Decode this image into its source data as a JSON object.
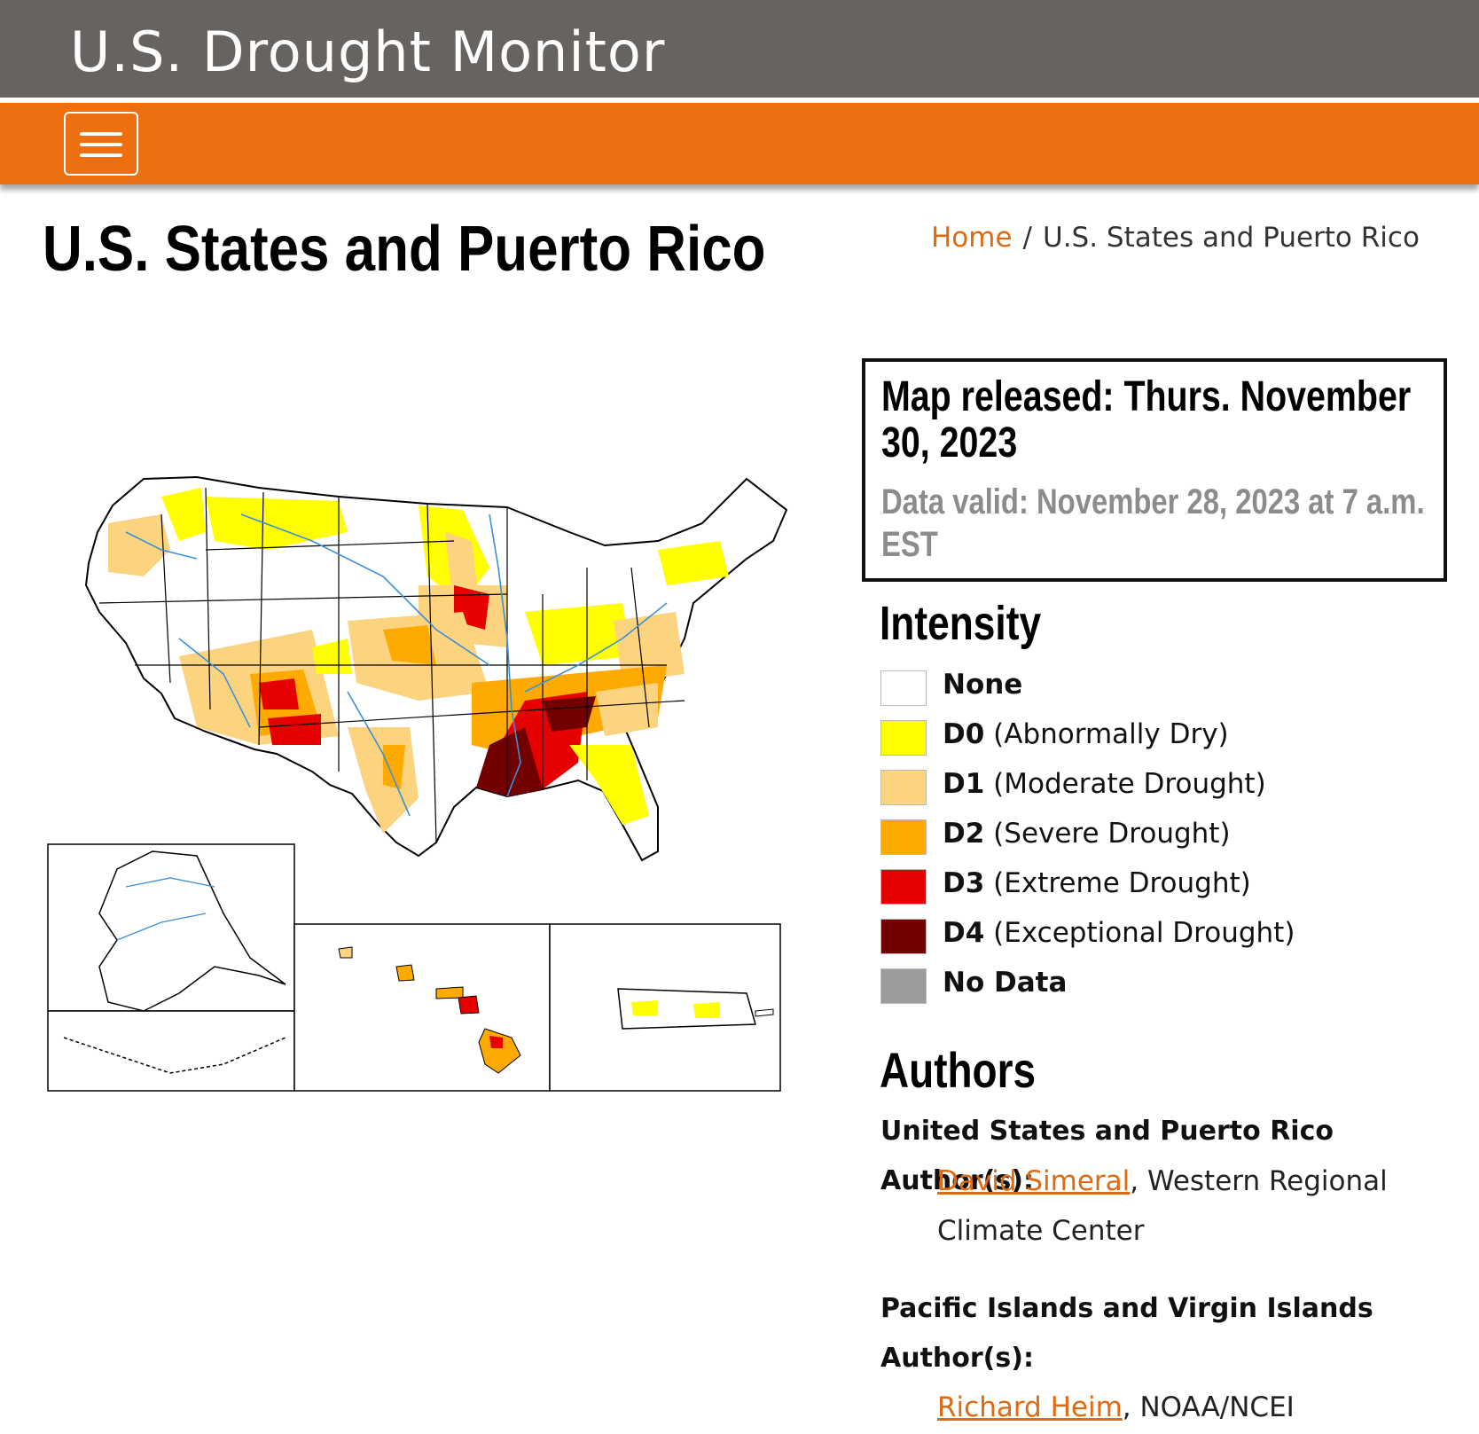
{
  "header": {
    "site_title": "U.S. Drought Monitor"
  },
  "navbar": {
    "menu_icon": "hamburger-icon"
  },
  "page": {
    "title": "U.S. States and Puerto Rico"
  },
  "breadcrumb": {
    "home": "Home",
    "separator": "/",
    "current": "U.S. States and Puerto Rico"
  },
  "release": {
    "released": "Map released: Thurs. November 30, 2023",
    "valid": "Data valid: November 28, 2023 at 7 a.m. EST"
  },
  "legend": {
    "heading": "Intensity",
    "items": [
      {
        "code": "None",
        "desc": "",
        "color": "#ffffff"
      },
      {
        "code": "D0",
        "desc": "(Abnormally Dry)",
        "color": "#ffff00"
      },
      {
        "code": "D1",
        "desc": "(Moderate Drought)",
        "color": "#fcd37f"
      },
      {
        "code": "D2",
        "desc": "(Severe Drought)",
        "color": "#ffaa00"
      },
      {
        "code": "D3",
        "desc": "(Extreme Drought)",
        "color": "#e60000"
      },
      {
        "code": "D4",
        "desc": "(Exceptional Drought)",
        "color": "#730000"
      },
      {
        "code": "No Data",
        "desc": "",
        "color": "#9b9b9b"
      }
    ]
  },
  "authors": {
    "heading": "Authors",
    "groups": [
      {
        "title": "United States and Puerto Rico Author(s):",
        "name": "David Simeral",
        "affiliation": ", Western Regional Climate Center"
      },
      {
        "title": "Pacific Islands and Virgin Islands Author(s):",
        "name": "Richard Heim",
        "affiliation": ", NOAA/NCEI"
      }
    ]
  },
  "map": {
    "regions": [
      "Contiguous United States",
      "Alaska",
      "Hawaii",
      "Puerto Rico"
    ]
  }
}
